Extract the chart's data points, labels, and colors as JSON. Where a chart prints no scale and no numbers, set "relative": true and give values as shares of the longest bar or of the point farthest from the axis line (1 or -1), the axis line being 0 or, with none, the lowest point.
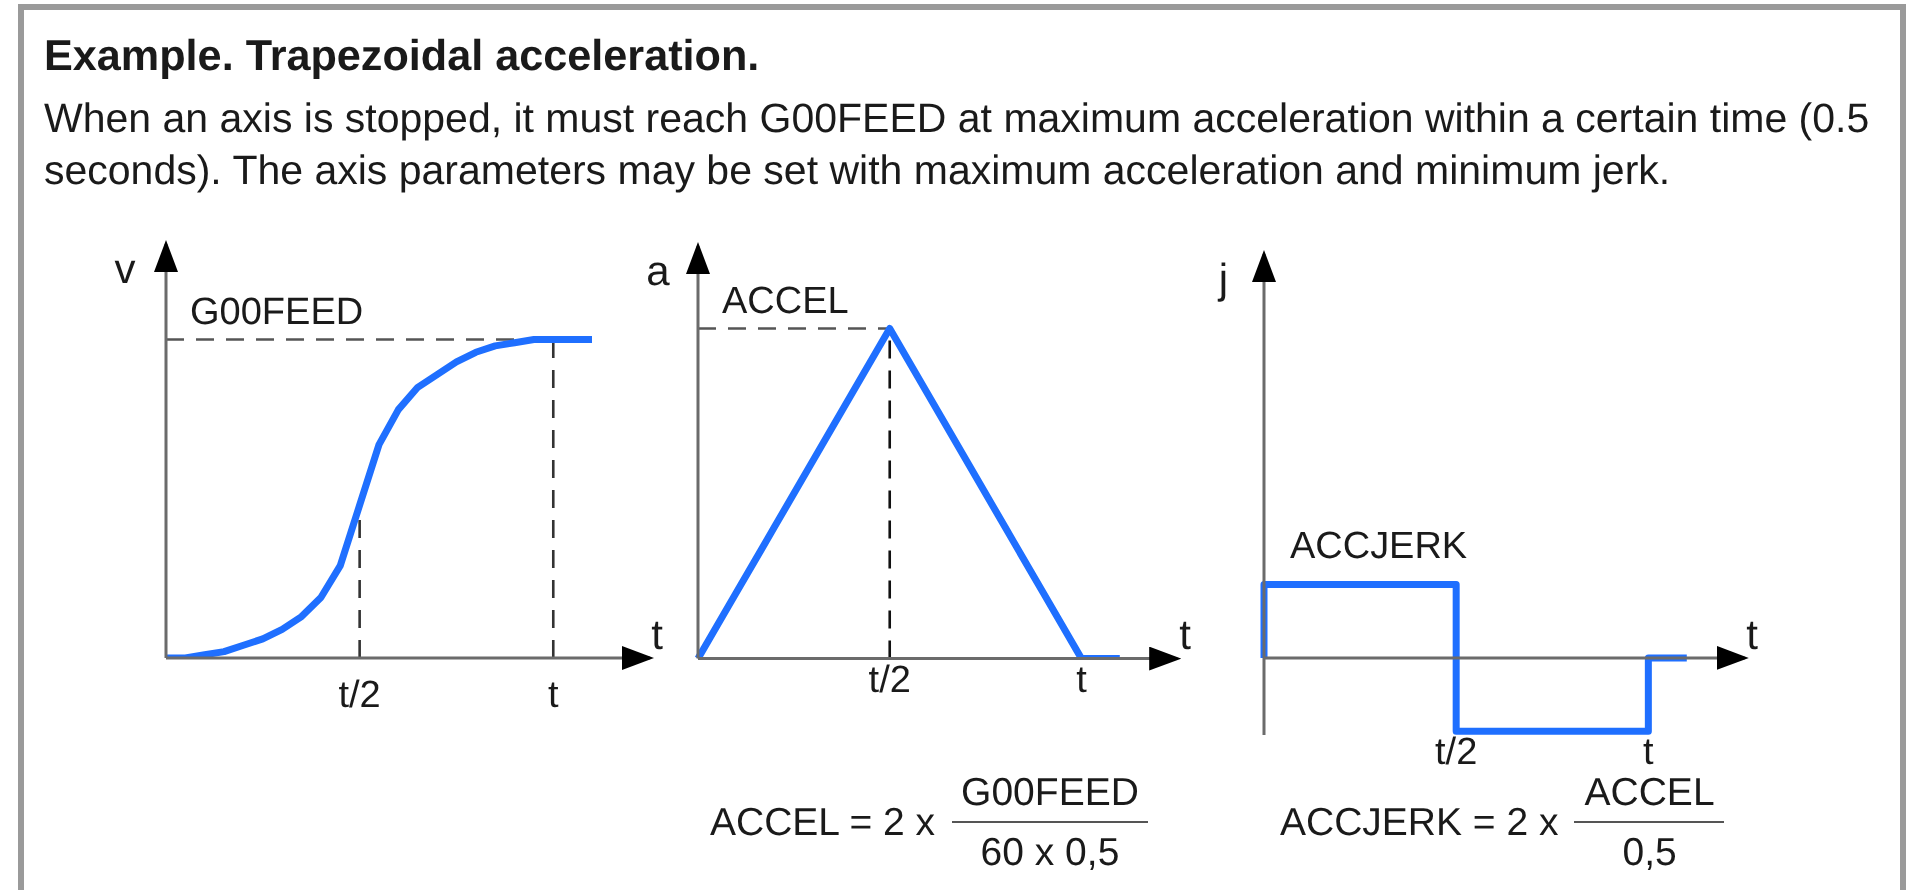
{
  "chart_data": [
    {
      "type": "line",
      "title": "Example. Trapezoidal acceleration.",
      "subtitle": "When an axis is stopped, it must reach G00FEED at maximum acceleration within a certain time (0.5 seconds). The axis parameters may be set with maximum acceleration and minimum jerk.",
      "xlabel": "t",
      "ylabel": "v",
      "relative": true,
      "categories": [
        null,
        null,
        null,
        null,
        null,
        null,
        null,
        null,
        null,
        null,
        "t/2",
        null,
        null,
        null,
        null,
        null,
        null,
        null,
        null,
        null,
        "t",
        null,
        null
      ],
      "series": [
        {
          "color": "#1f6fff",
          "values": [
            0,
            0,
            0.01,
            0.02,
            0.04,
            0.06,
            0.09,
            0.13,
            0.19,
            0.29,
            0.48,
            0.67,
            0.78,
            0.85,
            0.89,
            0.93,
            0.96,
            0.98,
            0.99,
            1,
            1,
            1,
            1
          ]
        }
      ],
      "ref_lines": [
        {
          "axis": "y",
          "value": 1,
          "label": "G00FEED",
          "color": "#555555",
          "line_style": "dashed"
        },
        {
          "axis": "x",
          "value": "t/2",
          "color": "#333333",
          "line_style": "dashed"
        },
        {
          "axis": "x",
          "value": "t",
          "color": "#333333",
          "line_style": "dashed"
        }
      ]
    },
    {
      "type": "line",
      "xlabel": "t",
      "ylabel": "a",
      "relative": true,
      "categories": [
        null,
        null,
        null,
        null,
        null,
        "t/2",
        null,
        null,
        null,
        null,
        "t",
        null
      ],
      "series": [
        {
          "color": "#1f6fff",
          "values": [
            0,
            0.2,
            0.4,
            0.6,
            0.8,
            1,
            0.8,
            0.6,
            0.4,
            0.2,
            0,
            0
          ]
        }
      ],
      "ref_lines": [
        {
          "axis": "y",
          "value": 1,
          "label": "ACCEL",
          "color": "#555555",
          "line_style": "dashed"
        },
        {
          "axis": "x",
          "value": "t/2",
          "color": "#111111",
          "line_style": "dashed"
        }
      ],
      "annotations": [
        "ACCEL = 2 x",
        "G00FEED",
        "60 x 0,5"
      ]
    },
    {
      "type": "step",
      "xlabel": "t",
      "ylabel": "j",
      "relative": true,
      "categories": [
        null,
        null,
        null,
        null,
        null,
        "t/2",
        null,
        null,
        null,
        null,
        "t",
        null
      ],
      "series": [
        {
          "name": "ACCJERK",
          "color": "#1f6fff",
          "values": [
            0,
            1,
            1,
            1,
            1,
            1,
            -1,
            -1,
            -1,
            -1,
            -1,
            0
          ]
        }
      ],
      "annotations": [
        "ACCJERK = 2 x",
        "ACCEL",
        "0,5"
      ]
    }
  ]
}
